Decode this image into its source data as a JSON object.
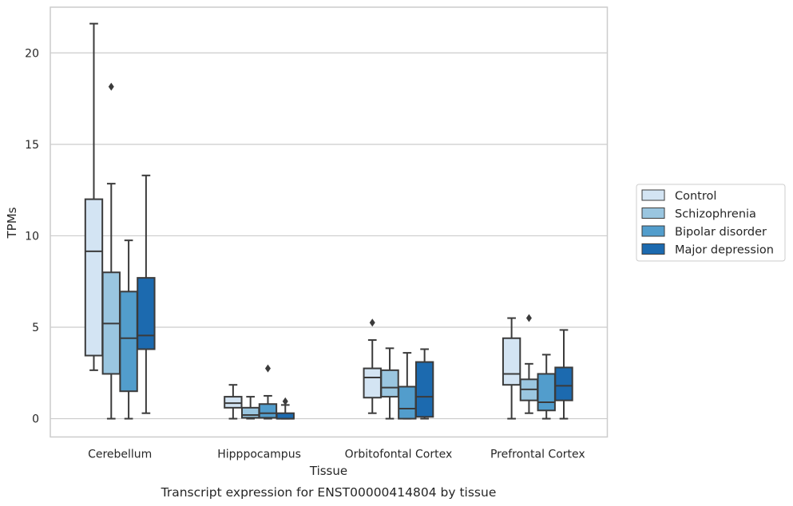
{
  "chart_data": {
    "type": "boxplot",
    "caption": "Transcript expression for ENST00000414804 by tissue",
    "xlabel": "Tissue",
    "ylabel": "TPMs",
    "ylim": [
      -1,
      22.5
    ],
    "yticks": [
      0,
      5,
      10,
      15,
      20
    ],
    "grid": "horizontal",
    "legend_position": "right",
    "categories": [
      "Cerebellum",
      "Hipppocampus",
      "Orbitofontal Cortex",
      "Prefrontal Cortex"
    ],
    "series": [
      {
        "name": "Control",
        "color": "#d3e4f3",
        "boxes": [
          {
            "whislo": 2.65,
            "q1": 3.45,
            "med": 9.15,
            "q3": 12.0,
            "whishi": 21.6,
            "fliers": []
          },
          {
            "whislo": 0.0,
            "q1": 0.6,
            "med": 0.85,
            "q3": 1.2,
            "whishi": 1.85,
            "fliers": []
          },
          {
            "whislo": 0.3,
            "q1": 1.15,
            "med": 2.25,
            "q3": 2.75,
            "whishi": 4.3,
            "fliers": [
              5.25
            ]
          },
          {
            "whislo": 0.0,
            "q1": 1.85,
            "med": 2.45,
            "q3": 4.4,
            "whishi": 5.5,
            "fliers": []
          }
        ]
      },
      {
        "name": "Schizophrenia",
        "color": "#9ac6e0",
        "boxes": [
          {
            "whislo": 0.0,
            "q1": 2.45,
            "med": 5.2,
            "q3": 8.0,
            "whishi": 12.85,
            "fliers": [
              18.15
            ]
          },
          {
            "whislo": 0.0,
            "q1": 0.05,
            "med": 0.2,
            "q3": 0.6,
            "whishi": 1.2,
            "fliers": []
          },
          {
            "whislo": 0.0,
            "q1": 1.2,
            "med": 1.7,
            "q3": 2.65,
            "whishi": 3.85,
            "fliers": []
          },
          {
            "whislo": 0.3,
            "q1": 1.0,
            "med": 1.6,
            "q3": 2.15,
            "whishi": 3.0,
            "fliers": [
              5.5
            ]
          }
        ]
      },
      {
        "name": "Bipolar disorder",
        "color": "#529dcc",
        "boxes": [
          {
            "whislo": 0.0,
            "q1": 1.5,
            "med": 4.4,
            "q3": 6.95,
            "whishi": 9.75,
            "fliers": []
          },
          {
            "whislo": 0.0,
            "q1": 0.05,
            "med": 0.3,
            "q3": 0.8,
            "whishi": 1.25,
            "fliers": [
              2.75
            ]
          },
          {
            "whislo": 0.0,
            "q1": 0.0,
            "med": 0.55,
            "q3": 1.75,
            "whishi": 3.6,
            "fliers": []
          },
          {
            "whislo": 0.0,
            "q1": 0.45,
            "med": 0.9,
            "q3": 2.45,
            "whishi": 3.5,
            "fliers": []
          }
        ]
      },
      {
        "name": "Major depression",
        "color": "#1c6aaf",
        "boxes": [
          {
            "whislo": 0.3,
            "q1": 3.8,
            "med": 4.55,
            "q3": 7.7,
            "whishi": 13.3,
            "fliers": []
          },
          {
            "whislo": 0.0,
            "q1": 0.0,
            "med": 0.0,
            "q3": 0.3,
            "whishi": 0.75,
            "fliers": [
              0.95
            ]
          },
          {
            "whislo": 0.0,
            "q1": 0.1,
            "med": 1.2,
            "q3": 3.1,
            "whishi": 3.8,
            "fliers": []
          },
          {
            "whislo": 0.0,
            "q1": 1.0,
            "med": 1.8,
            "q3": 2.8,
            "whishi": 4.85,
            "fliers": []
          }
        ]
      }
    ]
  }
}
